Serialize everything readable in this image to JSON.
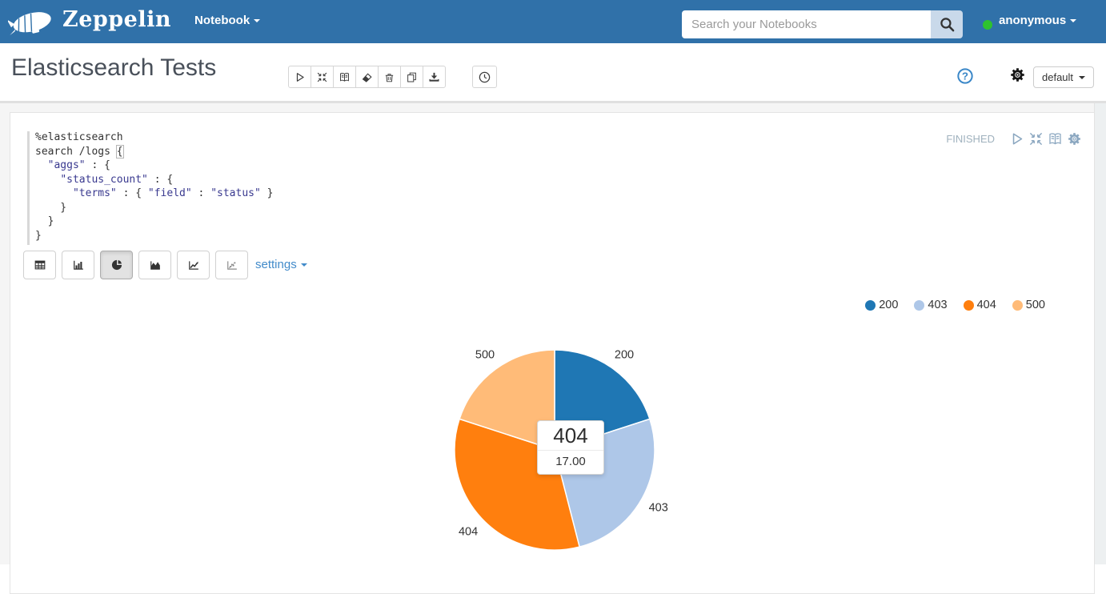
{
  "navbar": {
    "brand": "Zeppelin",
    "notebook_menu": "Notebook",
    "search": {
      "placeholder": "Search your Notebooks"
    },
    "user": {
      "name": "anonymous",
      "status_color": "#2ec22e"
    },
    "colors": {
      "bg": "#3071a9",
      "search_button_bg": "#c9d9ea"
    }
  },
  "note_header": {
    "title": "Elasticsearch Tests",
    "toolbar": [
      "play",
      "compress",
      "book",
      "eraser",
      "trash",
      "copy",
      "download"
    ],
    "scheduler_icon": "clock",
    "help_icon": "question-circle",
    "settings_icon": "gear",
    "interpreter": {
      "label": "default"
    }
  },
  "paragraph": {
    "status": "FINISHED",
    "controls": [
      "play",
      "compress",
      "book",
      "gear"
    ],
    "code": {
      "interpreter_directive": "%elasticsearch",
      "lines": [
        [
          {
            "t": "%elasticsearch",
            "c": "p"
          }
        ],
        [
          {
            "t": "search /logs ",
            "c": "p"
          },
          {
            "t": "{",
            "c": "b"
          }
        ],
        [
          {
            "t": "  ",
            "c": "p"
          },
          {
            "t": "\"aggs\"",
            "c": "s"
          },
          {
            "t": " : {",
            "c": "p"
          }
        ],
        [
          {
            "t": "    ",
            "c": "p"
          },
          {
            "t": "\"status_count\"",
            "c": "s"
          },
          {
            "t": " : {",
            "c": "p"
          }
        ],
        [
          {
            "t": "      ",
            "c": "p"
          },
          {
            "t": "\"terms\"",
            "c": "s"
          },
          {
            "t": " : { ",
            "c": "p"
          },
          {
            "t": "\"field\"",
            "c": "s"
          },
          {
            "t": " : ",
            "c": "p"
          },
          {
            "t": "\"status\"",
            "c": "s"
          },
          {
            "t": " }",
            "c": "p"
          }
        ],
        [
          {
            "t": "    }",
            "c": "p"
          }
        ],
        [
          {
            "t": "  }",
            "c": "p"
          }
        ],
        [
          {
            "t": "}",
            "c": "p"
          }
        ]
      ]
    },
    "chart_tabs": [
      {
        "icon": "table",
        "selected": false
      },
      {
        "icon": "bar",
        "selected": false
      },
      {
        "icon": "pie",
        "selected": true
      },
      {
        "icon": "area",
        "selected": false
      },
      {
        "icon": "line",
        "selected": false
      },
      {
        "icon": "scatter",
        "selected": false
      }
    ],
    "settings_label": "settings"
  },
  "chart_data": {
    "type": "pie",
    "categories": [
      "200",
      "403",
      "404",
      "500"
    ],
    "values": [
      10,
      13,
      17,
      10
    ],
    "colors": [
      "#1f77b4",
      "#aec7e8",
      "#ff7f0e",
      "#ffbb78"
    ],
    "legend_position": "top-right",
    "start_angle_deg": 0,
    "tooltip": {
      "label": "404",
      "value": "17.00"
    }
  }
}
